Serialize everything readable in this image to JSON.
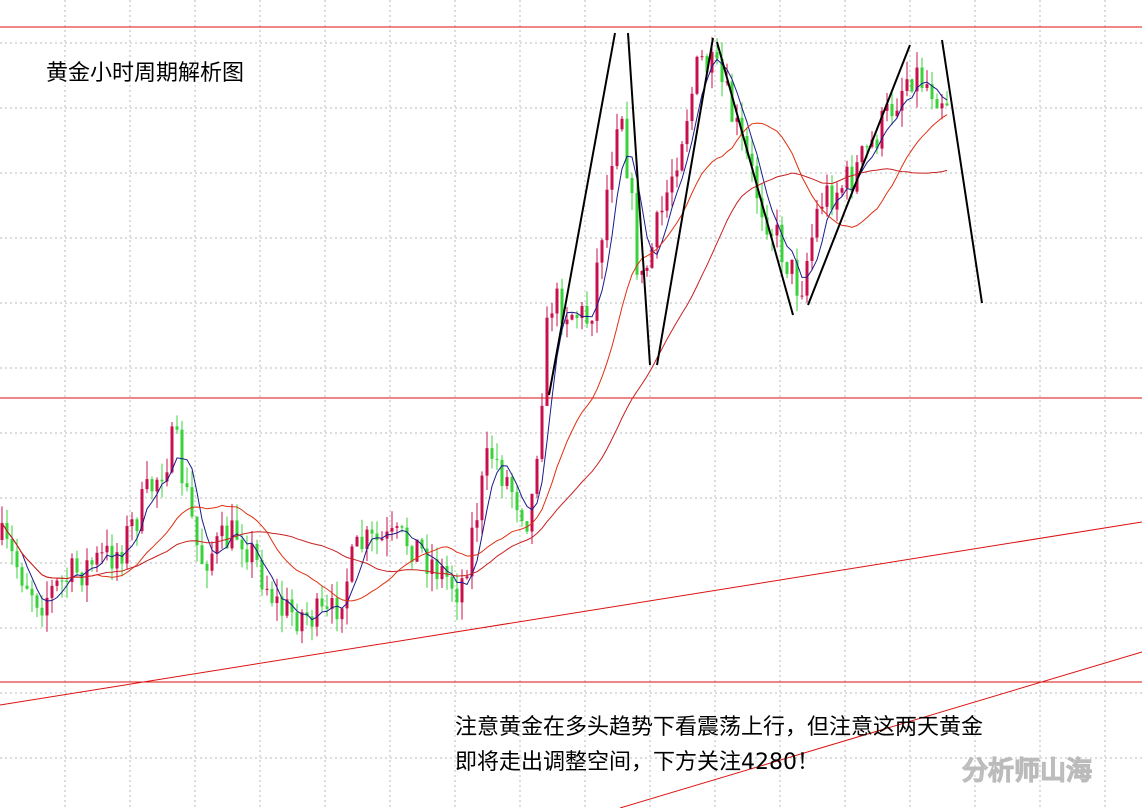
{
  "title": "黄金小时周期解析图",
  "annotation": {
    "lines": [
      "注意黄金在多头趋势下看震荡上行，但注意这两天黄金",
      "即将走出调整空间，下方关注4280！"
    ]
  },
  "watermark": "分析师山海"
}
